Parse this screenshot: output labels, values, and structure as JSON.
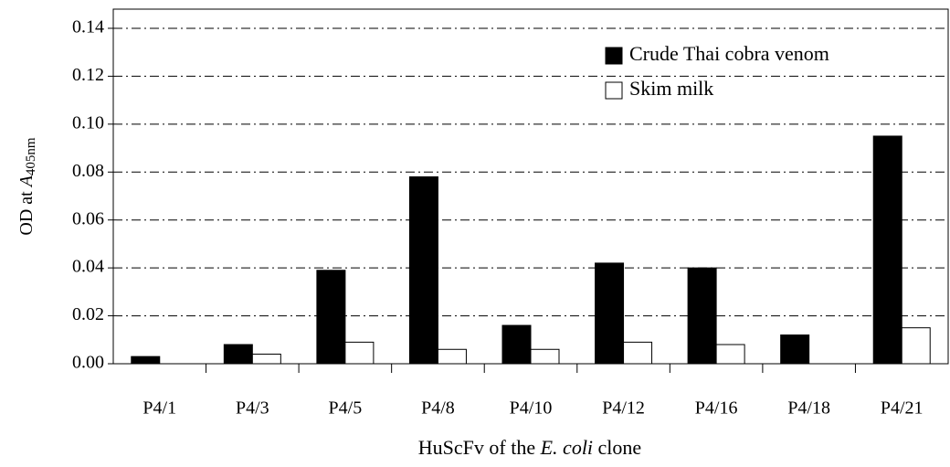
{
  "chart_data": {
    "type": "bar",
    "y_label": {
      "text": "OD at ",
      "italic": "A",
      "subscript": "405nm"
    },
    "x_label": {
      "text": "HuScFv of the ",
      "italic": "E. coli",
      "after": " clone"
    },
    "categories": [
      "P4/1",
      "P4/3",
      "P4/5",
      "P4/8",
      "P4/10",
      "P4/12",
      "P4/16",
      "P4/18",
      "P4/21"
    ],
    "series": [
      {
        "name": "Crude Thai cobra venom",
        "color": "#000000",
        "values": [
          0.003,
          0.008,
          0.039,
          0.078,
          0.016,
          0.042,
          0.04,
          0.012,
          0.095
        ]
      },
      {
        "name": "Skim milk",
        "color": "#ffffff",
        "values": [
          0,
          0.004,
          0.009,
          0.006,
          0.006,
          0.009,
          0.008,
          0,
          0.015
        ]
      }
    ],
    "ylim": [
      0,
      0.148
    ],
    "yticks": [
      {
        "value": 0,
        "label": "0.00"
      },
      {
        "value": 0.02,
        "label": "0.02"
      },
      {
        "value": 0.04,
        "label": "0.04"
      },
      {
        "value": 0.06,
        "label": "0.06"
      },
      {
        "value": 0.08,
        "label": "0.08"
      },
      {
        "value": 0.1,
        "label": "0.10"
      },
      {
        "value": 0.12,
        "label": "0.12"
      },
      {
        "value": 0.14,
        "label": "0.14"
      }
    ],
    "grid": true,
    "legend": "upper right"
  }
}
